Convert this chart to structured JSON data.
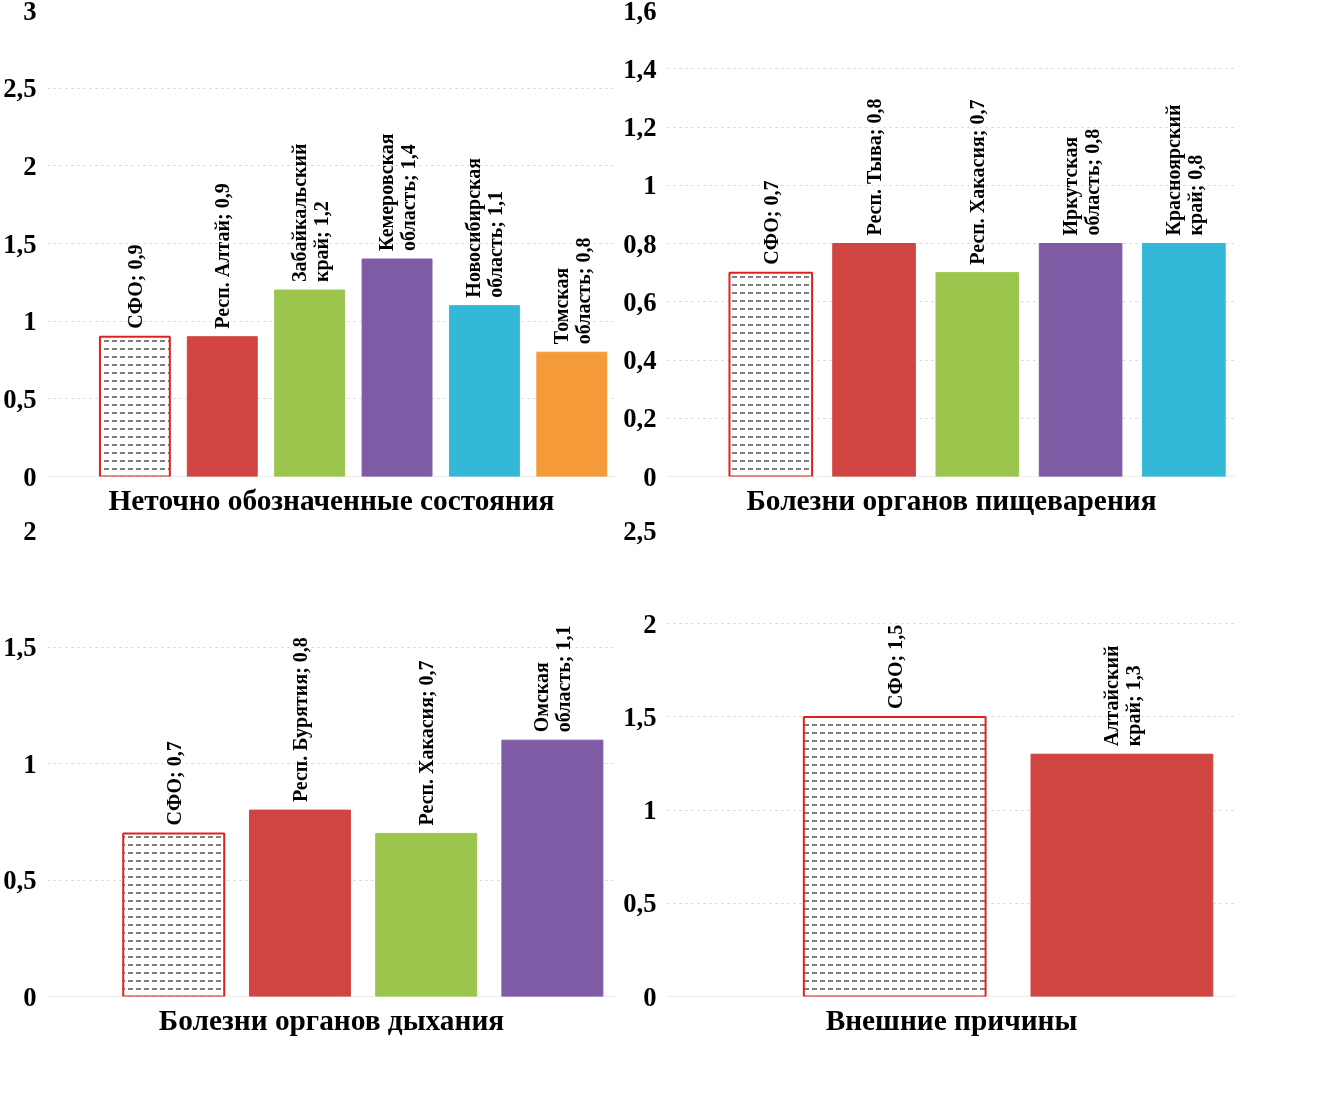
{
  "chart_data": [
    {
      "type": "bar",
      "title": "Неточно обозначенные состояния",
      "categories": [
        null,
        null,
        null,
        null,
        null,
        null
      ],
      "values": [
        0.9,
        0.9,
        1.2,
        1.4,
        1.1,
        0.8
      ],
      "colors": [
        "#ffffff",
        "#d04541",
        "#9bc54d",
        "#7f5ba6",
        "#34b8d8",
        "#f59a38"
      ],
      "value_labels": [
        "СФО; 0,9",
        "Респ. Алтай; 0,9",
        "Забайкальский край; 1,2",
        "Кемеровская область; 1,4",
        "Новосибирская область; 1,1",
        "Томская область; 0,8"
      ],
      "ylim": [
        0,
        3
      ],
      "yticks": [
        0,
        {
          "value": 0.5,
          "label": "0,5"
        },
        1,
        {
          "value": 1.5,
          "label": "1,5"
        },
        2,
        {
          "value": 2.5,
          "label": "2,5"
        },
        3
      ],
      "grid": "y"
    },
    {
      "type": "bar",
      "title": "Болезни органов пищеварения",
      "categories": [
        null,
        null,
        null,
        null,
        null
      ],
      "values": [
        0.7,
        0.8,
        0.7,
        0.8,
        0.8
      ],
      "colors": [
        "#ffffff",
        "#d04541",
        "#9bc54d",
        "#7f5ba6",
        "#34b8d8"
      ],
      "value_labels": [
        "СФО; 0,7",
        "Респ. Тыва; 0,8",
        "Респ. Хакасия; 0,7",
        "Иркутская область; 0,8",
        "Красноярский край; 0,8"
      ],
      "ylim": [
        0,
        1.6
      ],
      "yticks": [
        0,
        {
          "value": 0.2,
          "label": "0,2"
        },
        {
          "value": 0.4,
          "label": "0,4"
        },
        {
          "value": 0.6,
          "label": "0,6"
        },
        {
          "value": 0.8,
          "label": "0,8"
        },
        1,
        {
          "value": 1.2,
          "label": "1,2"
        },
        {
          "value": 1.4,
          "label": "1,4"
        },
        {
          "value": 1.6,
          "label": "1,6"
        }
      ],
      "grid": "y"
    },
    {
      "type": "bar",
      "title": "Болезни органов дыхания",
      "categories": [
        null,
        null,
        null,
        null
      ],
      "values": [
        0.7,
        0.8,
        0.7,
        1.1
      ],
      "colors": [
        "#ffffff",
        "#d04541",
        "#9bc54d",
        "#7f5ba6"
      ],
      "value_labels": [
        "СФО; 0,7",
        "Респ. Бурятия; 0,8",
        "Респ. Хакасия; 0,7",
        "Омская область; 1,1"
      ],
      "ylim": [
        0,
        2
      ],
      "yticks": [
        0,
        {
          "value": 0.5,
          "label": "0,5"
        },
        1,
        {
          "value": 1.5,
          "label": "1,5"
        },
        2
      ],
      "grid": "y"
    },
    {
      "type": "bar",
      "title": "Внешние причины",
      "categories": [
        null,
        null
      ],
      "values": [
        1.5,
        1.3
      ],
      "colors": [
        "#ffffff",
        "#d04541"
      ],
      "value_labels": [
        "СФО; 1,5",
        "Алтайский край; 1,3"
      ],
      "ylim": [
        0,
        2.5
      ],
      "yticks": [
        0,
        {
          "value": 0.5,
          "label": "0,5"
        },
        1,
        {
          "value": 1.5,
          "label": "1,5"
        },
        2,
        {
          "value": 2.5,
          "label": "2,5"
        }
      ],
      "grid": "y"
    }
  ]
}
